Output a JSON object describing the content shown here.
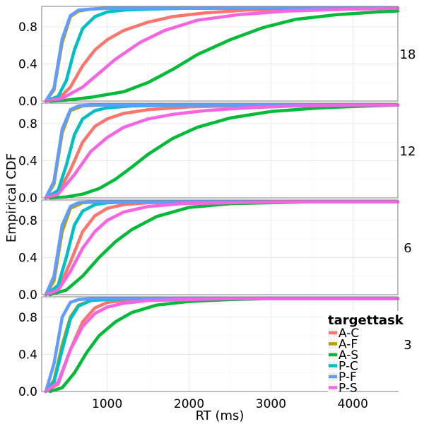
{
  "chart_data": {
    "type": "line",
    "xlabel": "RT (ms)",
    "ylabel": "Empirical CDF",
    "xlim": [
      200,
      4550
    ],
    "ylim": [
      0,
      1
    ],
    "x_ticks": [
      1000,
      2000,
      3000,
      4000
    ],
    "x_tick_labels": [
      "1000",
      "2000",
      "3000",
      "4000"
    ],
    "y_ticks": [
      0.0,
      0.4,
      0.8
    ],
    "y_tick_labels": [
      "0.0",
      "0.4",
      "0.8"
    ],
    "grid": true,
    "legend": {
      "title": "targettask",
      "placement": "bottom-right",
      "entries": [
        {
          "label": "A-C",
          "color": "#F8766D"
        },
        {
          "label": "A-F",
          "color": "#B79F00"
        },
        {
          "label": "A-S",
          "color": "#00BA38"
        },
        {
          "label": "P-C",
          "color": "#00BFC4"
        },
        {
          "label": "P-F",
          "color": "#619CFF"
        },
        {
          "label": "P-S",
          "color": "#F564E3"
        }
      ]
    },
    "panels": [
      {
        "strip": "18",
        "series": [
          {
            "name": "A-C",
            "color": "#F8766D",
            "x": [
              250,
              400,
              550,
              700,
              850,
              1000,
              1200,
              1500,
              1800,
              2200,
              2700,
              3300,
              4000,
              4550
            ],
            "y": [
              0,
              0.02,
              0.15,
              0.38,
              0.55,
              0.66,
              0.76,
              0.85,
              0.91,
              0.95,
              0.98,
              0.99,
              1.0,
              1.0
            ]
          },
          {
            "name": "A-F",
            "color": "#B79F00",
            "x": [
              250,
              350,
              450,
              550,
              650,
              800,
              1000,
              4550
            ],
            "y": [
              0,
              0.12,
              0.63,
              0.91,
              0.97,
              0.99,
              1.0,
              1.0
            ]
          },
          {
            "name": "A-S",
            "color": "#00BA38",
            "x": [
              300,
              500,
              800,
              1200,
              1500,
              1800,
              2100,
              2500,
              2900,
              3300,
              3800,
              4300,
              4550
            ],
            "y": [
              0,
              0.01,
              0.04,
              0.1,
              0.2,
              0.34,
              0.5,
              0.66,
              0.79,
              0.88,
              0.93,
              0.96,
              0.97
            ]
          },
          {
            "name": "P-C",
            "color": "#00BFC4",
            "x": [
              250,
              400,
              500,
              600,
              700,
              850,
              1000,
              1200,
              1500,
              2000,
              4550
            ],
            "y": [
              0,
              0.05,
              0.22,
              0.55,
              0.78,
              0.91,
              0.96,
              0.98,
              0.99,
              1.0,
              1.0
            ]
          },
          {
            "name": "P-F",
            "color": "#619CFF",
            "x": [
              250,
              350,
              450,
              550,
              650,
              800,
              1000,
              4550
            ],
            "y": [
              0,
              0.14,
              0.67,
              0.92,
              0.98,
              0.99,
              1.0,
              1.0
            ]
          },
          {
            "name": "P-S",
            "color": "#F564E3",
            "x": [
              250,
              450,
              700,
              900,
              1100,
              1400,
              1700,
              2100,
              2600,
              3200,
              4000,
              4550
            ],
            "y": [
              0,
              0.03,
              0.15,
              0.3,
              0.45,
              0.63,
              0.76,
              0.87,
              0.93,
              0.97,
              0.99,
              1.0
            ]
          }
        ]
      },
      {
        "strip": "12",
        "series": [
          {
            "name": "A-C",
            "color": "#F8766D",
            "x": [
              250,
              400,
              550,
              700,
              850,
              1000,
              1200,
              1500,
              2000,
              2500,
              3200,
              4550
            ],
            "y": [
              0,
              0.05,
              0.3,
              0.6,
              0.77,
              0.85,
              0.91,
              0.95,
              0.98,
              0.99,
              1.0,
              1.0
            ]
          },
          {
            "name": "A-F",
            "color": "#B79F00",
            "x": [
              250,
              350,
              450,
              550,
              700,
              900,
              4550
            ],
            "y": [
              0,
              0.15,
              0.7,
              0.94,
              0.99,
              1.0,
              1.0
            ]
          },
          {
            "name": "A-S",
            "color": "#00BA38",
            "x": [
              300,
              500,
              700,
              900,
              1100,
              1300,
              1500,
              1800,
              2100,
              2500,
              3000,
              3600,
              4200,
              4550
            ],
            "y": [
              0,
              0.01,
              0.04,
              0.1,
              0.2,
              0.33,
              0.47,
              0.64,
              0.76,
              0.86,
              0.93,
              0.97,
              0.99,
              1.0
            ]
          },
          {
            "name": "P-C",
            "color": "#00BFC4",
            "x": [
              250,
              400,
              500,
              600,
              700,
              850,
              1000,
              1300,
              2000,
              4550
            ],
            "y": [
              0,
              0.08,
              0.35,
              0.68,
              0.85,
              0.94,
              0.97,
              0.99,
              1.0,
              1.0
            ]
          },
          {
            "name": "P-F",
            "color": "#619CFF",
            "x": [
              250,
              350,
              450,
              550,
              650,
              800,
              1000,
              4550
            ],
            "y": [
              0,
              0.18,
              0.74,
              0.95,
              0.99,
              1.0,
              1.0,
              1.0
            ]
          },
          {
            "name": "P-S",
            "color": "#F564E3",
            "x": [
              250,
              400,
              600,
              800,
              1000,
              1200,
              1500,
              1800,
              2200,
              2700,
              3300,
              4000,
              4550
            ],
            "y": [
              0,
              0.04,
              0.25,
              0.5,
              0.65,
              0.76,
              0.85,
              0.9,
              0.94,
              0.97,
              0.99,
              1.0,
              1.0
            ]
          }
        ]
      },
      {
        "strip": "6",
        "series": [
          {
            "name": "A-C",
            "color": "#F8766D",
            "x": [
              250,
              400,
              550,
              700,
              850,
              1000,
              1200,
              1500,
              2000,
              4550
            ],
            "y": [
              0,
              0.05,
              0.35,
              0.68,
              0.85,
              0.93,
              0.97,
              0.99,
              1.0,
              1.0
            ]
          },
          {
            "name": "A-F",
            "color": "#B79F00",
            "x": [
              250,
              350,
              450,
              550,
              700,
              900,
              4550
            ],
            "y": [
              0,
              0.15,
              0.68,
              0.93,
              0.99,
              1.0,
              1.0
            ]
          },
          {
            "name": "A-S",
            "color": "#00BA38",
            "x": [
              300,
              500,
              700,
              900,
              1100,
              1300,
              1600,
              2000,
              2500,
              3000,
              3500,
              4550
            ],
            "y": [
              0,
              0.05,
              0.2,
              0.4,
              0.57,
              0.7,
              0.84,
              0.94,
              0.98,
              0.99,
              1.0,
              1.0
            ]
          },
          {
            "name": "P-C",
            "color": "#00BFC4",
            "x": [
              250,
              400,
              500,
              600,
              700,
              850,
              1000,
              1300,
              4550
            ],
            "y": [
              0,
              0.1,
              0.4,
              0.75,
              0.9,
              0.97,
              0.99,
              1.0,
              1.0
            ]
          },
          {
            "name": "P-F",
            "color": "#619CFF",
            "x": [
              250,
              350,
              450,
              550,
              650,
              800,
              4550
            ],
            "y": [
              0,
              0.2,
              0.75,
              0.95,
              0.99,
              1.0,
              1.0
            ]
          },
          {
            "name": "P-S",
            "color": "#F564E3",
            "x": [
              250,
              400,
              550,
              700,
              850,
              1000,
              1200,
              1500,
              1900,
              2500,
              3200,
              4550
            ],
            "y": [
              0,
              0.05,
              0.25,
              0.5,
              0.68,
              0.8,
              0.89,
              0.95,
              0.98,
              0.99,
              1.0,
              1.0
            ]
          }
        ]
      },
      {
        "strip": "3",
        "series": [
          {
            "name": "A-C",
            "color": "#F8766D",
            "x": [
              250,
              400,
              550,
              700,
              850,
              1000,
              1200,
              1500,
              2000,
              4550
            ],
            "y": [
              0,
              0.08,
              0.45,
              0.75,
              0.9,
              0.96,
              0.98,
              0.99,
              1.0,
              1.0
            ]
          },
          {
            "name": "A-F",
            "color": "#B79F00",
            "x": [
              250,
              350,
              450,
              550,
              650,
              800,
              1000,
              4550
            ],
            "y": [
              0,
              0.12,
              0.5,
              0.8,
              0.93,
              0.98,
              1.0,
              1.0
            ]
          },
          {
            "name": "A-S",
            "color": "#00BA38",
            "x": [
              300,
              450,
              600,
              750,
              900,
              1100,
              1300,
              1600,
              2000,
              2500,
              3000,
              4550
            ],
            "y": [
              0,
              0.04,
              0.2,
              0.42,
              0.6,
              0.75,
              0.85,
              0.93,
              0.97,
              0.99,
              1.0,
              1.0
            ]
          },
          {
            "name": "P-C",
            "color": "#00BFC4",
            "x": [
              250,
              350,
              450,
              550,
              650,
              800,
              1000,
              1300,
              4550
            ],
            "y": [
              0,
              0.1,
              0.45,
              0.78,
              0.92,
              0.98,
              0.99,
              1.0,
              1.0
            ]
          },
          {
            "name": "P-F",
            "color": "#619CFF",
            "x": [
              250,
              350,
              450,
              550,
              650,
              800,
              4550
            ],
            "y": [
              0,
              0.3,
              0.8,
              0.96,
              0.99,
              1.0,
              1.0
            ]
          },
          {
            "name": "P-S",
            "color": "#F564E3",
            "x": [
              250,
              400,
              550,
              700,
              850,
              1000,
              1200,
              1500,
              2000,
              2500,
              4550
            ],
            "y": [
              0,
              0.1,
              0.45,
              0.7,
              0.84,
              0.91,
              0.95,
              0.98,
              0.99,
              1.0,
              1.0
            ]
          }
        ]
      }
    ]
  }
}
